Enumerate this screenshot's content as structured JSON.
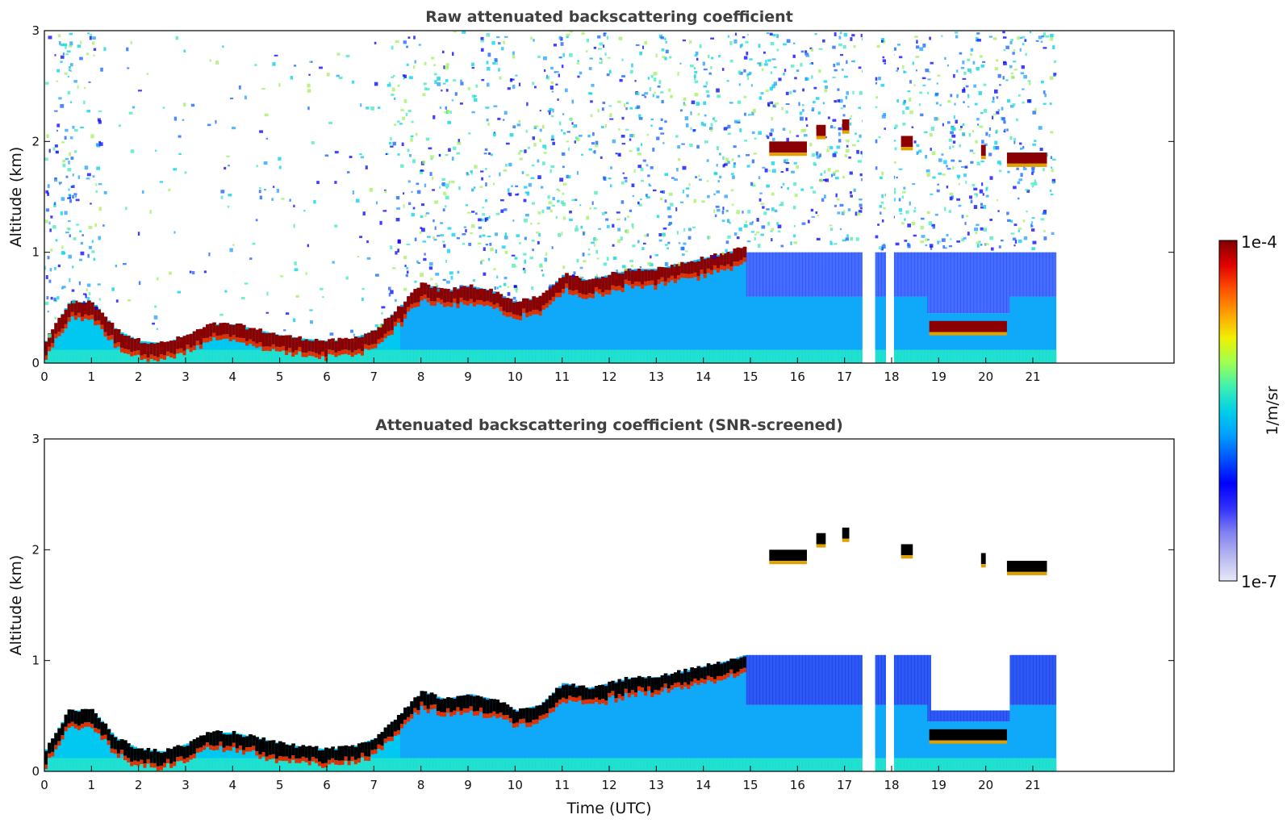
{
  "chart_data": [
    {
      "type": "heatmap",
      "title": "Raw attenuated backscattering coefficient",
      "xlabel": "",
      "ylabel": "Altitude (km)",
      "xlim": [
        0,
        24
      ],
      "ylim": [
        0,
        3
      ],
      "x_ticks": [
        "0",
        "1",
        "2",
        "3",
        "4",
        "5",
        "6",
        "7",
        "8",
        "9",
        "10",
        "11",
        "12",
        "13",
        "14",
        "15",
        "16",
        "17",
        "18",
        "19",
        "20",
        "21"
      ],
      "y_ticks": [
        "0",
        "1",
        "2",
        "3"
      ],
      "data_end_time": 21.45,
      "gaps_utc": [
        [
          17.38,
          17.65
        ],
        [
          17.88,
          18.05
        ]
      ],
      "boundary_layer_top_km": [
        [
          0,
          0.2
        ],
        [
          0.5,
          0.55
        ],
        [
          1,
          0.55
        ],
        [
          1.5,
          0.3
        ],
        [
          2,
          0.2
        ],
        [
          2.5,
          0.18
        ],
        [
          3,
          0.25
        ],
        [
          3.5,
          0.35
        ],
        [
          4,
          0.35
        ],
        [
          4.5,
          0.3
        ],
        [
          5,
          0.25
        ],
        [
          5.5,
          0.22
        ],
        [
          6,
          0.2
        ],
        [
          6.5,
          0.22
        ],
        [
          7,
          0.3
        ],
        [
          7.5,
          0.5
        ],
        [
          8,
          0.72
        ],
        [
          8.5,
          0.65
        ],
        [
          9,
          0.7
        ],
        [
          9.5,
          0.65
        ],
        [
          10,
          0.55
        ],
        [
          10.5,
          0.6
        ],
        [
          11,
          0.8
        ],
        [
          11.5,
          0.75
        ],
        [
          12,
          0.8
        ],
        [
          12.5,
          0.85
        ],
        [
          13,
          0.85
        ],
        [
          13.5,
          0.9
        ],
        [
          14,
          0.95
        ],
        [
          14.5,
          1.0
        ],
        [
          14.85,
          1.05
        ]
      ],
      "cloud_layers": [
        {
          "t0": 15.4,
          "t1": 16.2,
          "z": 1.95
        },
        {
          "t0": 16.4,
          "t1": 16.6,
          "z": 2.1
        },
        {
          "t0": 16.95,
          "t1": 17.1,
          "z": 2.15
        },
        {
          "t0": 18.2,
          "t1": 18.45,
          "z": 2.0
        },
        {
          "t0": 19.9,
          "t1": 20.0,
          "z": 1.92
        },
        {
          "t0": 20.45,
          "t1": 21.3,
          "z": 1.85
        },
        {
          "t0": 18.8,
          "t1": 20.45,
          "z": 0.33
        }
      ]
    },
    {
      "type": "heatmap",
      "title": "Attenuated backscattering coefficient (SNR-screened)",
      "xlabel": "Time (UTC)",
      "ylabel": "Altitude (km)",
      "xlim": [
        0,
        24
      ],
      "ylim": [
        0,
        3
      ],
      "x_ticks": [
        "0",
        "1",
        "2",
        "3",
        "4",
        "5",
        "6",
        "7",
        "8",
        "9",
        "10",
        "11",
        "12",
        "13",
        "14",
        "15",
        "16",
        "17",
        "18",
        "19",
        "20",
        "21"
      ],
      "y_ticks": [
        "0",
        "1",
        "2",
        "3"
      ],
      "data_end_time": 21.45
    }
  ],
  "colorbar": {
    "max_label": "1e-4",
    "min_label": "1e-7",
    "unit_label": "1/m/sr",
    "colors": [
      "#e8e8f8",
      "#b8b8f0",
      "#8080f0",
      "#3030ff",
      "#0000ff",
      "#0050ff",
      "#00a0ff",
      "#00d0e8",
      "#40f0b0",
      "#a0ff50",
      "#f0f000",
      "#ffa000",
      "#ff5000",
      "#e00000",
      "#800000"
    ]
  }
}
